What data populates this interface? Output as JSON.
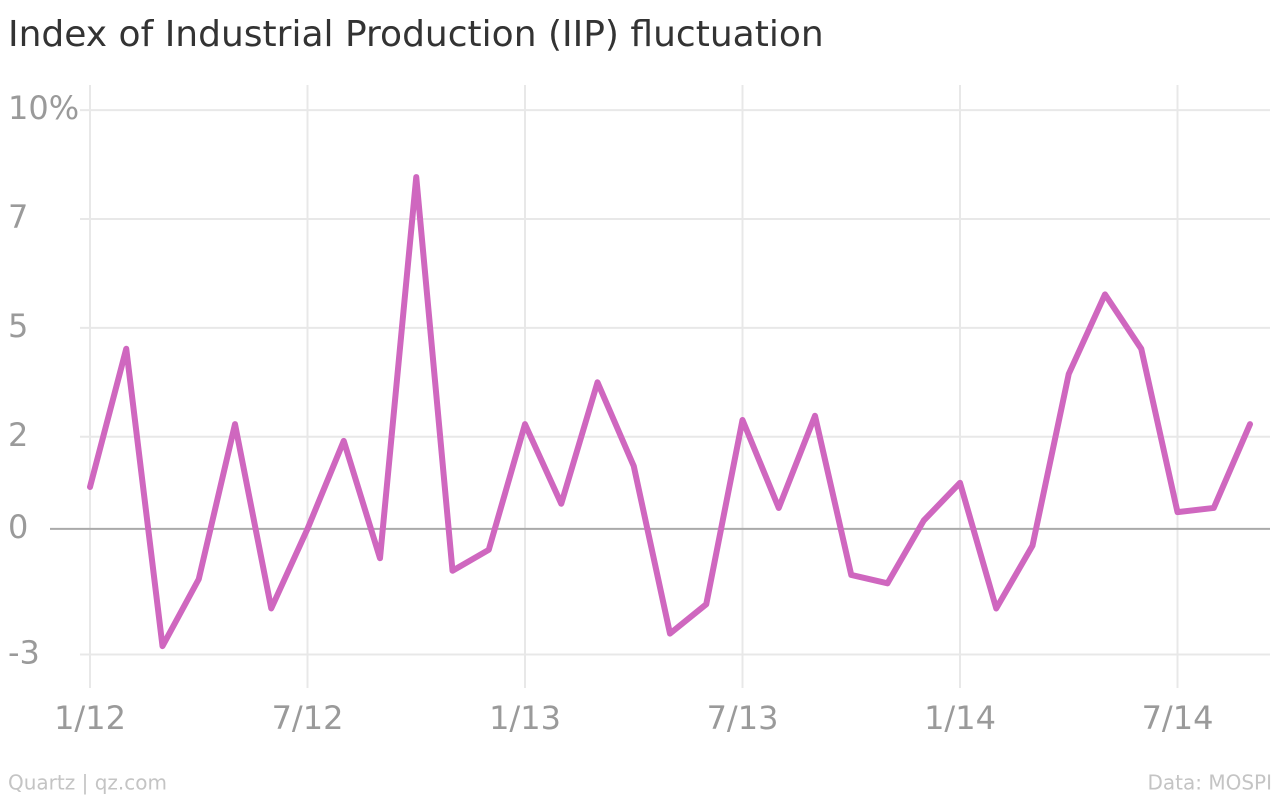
{
  "chart_data": {
    "type": "line",
    "title": "Index of Industrial Production (IIP) fluctuation",
    "source": "Data: MOSPI",
    "credit": "Quartz | qz.com",
    "categories": [
      "1/12",
      null,
      null,
      null,
      null,
      null,
      "7/12",
      null,
      null,
      null,
      null,
      null,
      "1/13",
      null,
      null,
      null,
      null,
      null,
      "7/13",
      null,
      null,
      null,
      null,
      null,
      "1/14",
      null,
      null,
      null,
      null,
      null,
      "7/14",
      null,
      null
    ],
    "values": [
      1.0,
      4.3,
      -2.8,
      -1.2,
      2.5,
      -1.9,
      0.0,
      2.1,
      -0.7,
      8.4,
      -1.0,
      -0.5,
      2.5,
      0.6,
      3.5,
      1.5,
      -2.5,
      -1.8,
      2.6,
      0.5,
      2.7,
      -1.1,
      -1.3,
      0.2,
      1.1,
      -1.9,
      -0.4,
      3.7,
      5.6,
      4.3,
      0.4,
      0.5,
      2.5
    ],
    "color": "#cf67bf",
    "ylim": [
      -3.8,
      10.6
    ],
    "yticks": [
      {
        "value": 10,
        "label": "10%"
      },
      {
        "value": 7.4,
        "label": "7"
      },
      {
        "value": 4.8,
        "label": "5"
      },
      {
        "value": 2.2,
        "label": "2"
      },
      0,
      -3
    ],
    "grid": true
  }
}
